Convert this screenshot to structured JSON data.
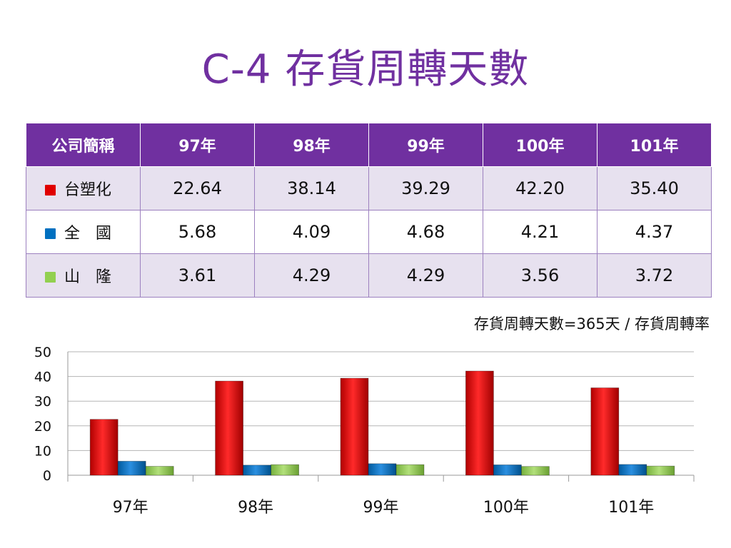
{
  "slide": {
    "title": "C-4  存貨周轉天數",
    "formula": "存貨周轉天數=365天 /  存貨周轉率"
  },
  "table": {
    "header": [
      "公司簡稱",
      "97年",
      "98年",
      "99年",
      "100年",
      "101年"
    ],
    "rows": [
      {
        "name": "台塑化",
        "color": "#e00000",
        "values": [
          "22.64",
          "38.14",
          "39.29",
          "42.20",
          "35.40"
        ]
      },
      {
        "name": "全　國",
        "color": "#0070c0",
        "values": [
          "5.68",
          "4.09",
          "4.68",
          "4.21",
          "4.37"
        ]
      },
      {
        "name": "山　隆",
        "color": "#92d050",
        "values": [
          "3.61",
          "4.29",
          "4.29",
          "3.56",
          "3.72"
        ]
      }
    ]
  },
  "chart_data": {
    "type": "bar",
    "categories": [
      "97年",
      "98年",
      "99年",
      "100年",
      "101年"
    ],
    "series": [
      {
        "name": "台塑化",
        "color": "#e00000",
        "values": [
          22.64,
          38.14,
          39.29,
          42.2,
          35.4
        ]
      },
      {
        "name": "全　國",
        "color": "#0070c0",
        "values": [
          5.68,
          4.09,
          4.68,
          4.21,
          4.37
        ]
      },
      {
        "name": "山　隆",
        "color": "#92d050",
        "values": [
          3.61,
          4.29,
          4.29,
          3.56,
          3.72
        ]
      }
    ],
    "ylim": [
      0,
      50
    ],
    "yticks": [
      0,
      10,
      20,
      30,
      40,
      50
    ],
    "grid": true,
    "legend": "none"
  }
}
